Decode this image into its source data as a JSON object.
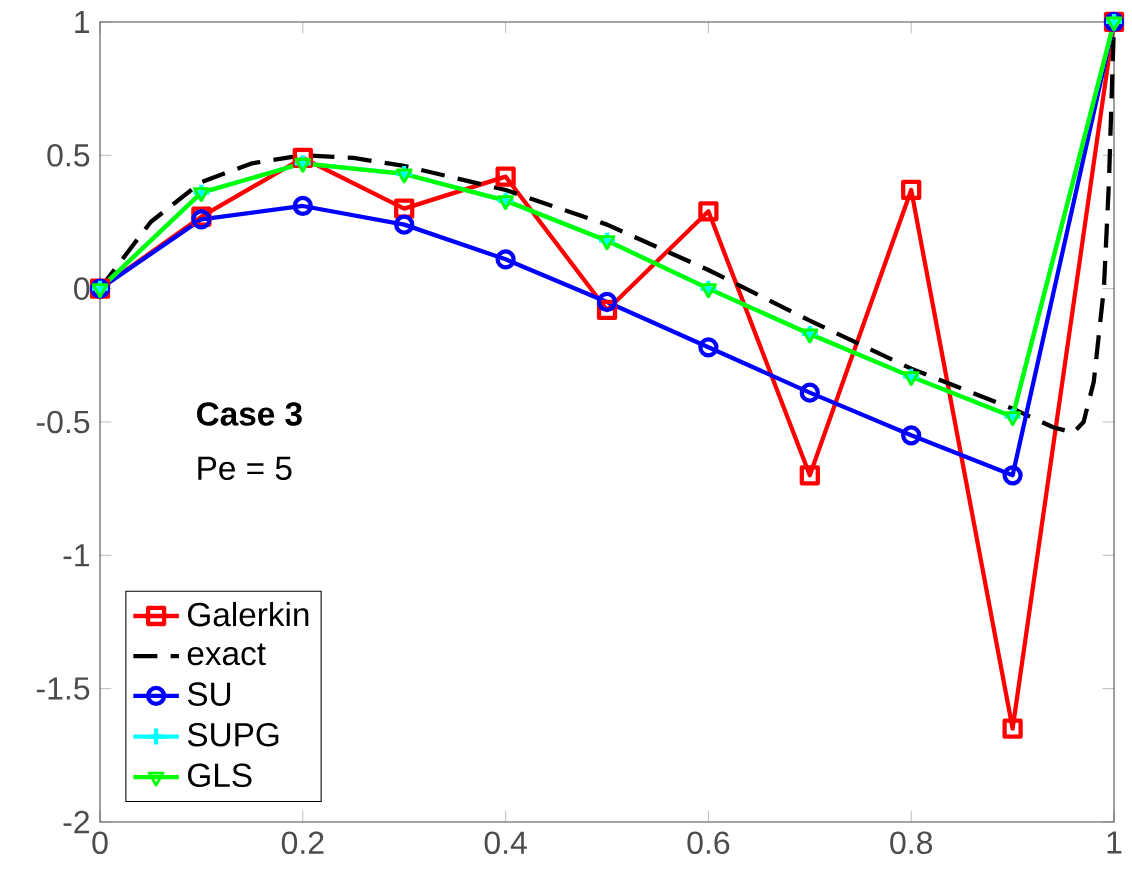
{
  "chart_data": {
    "type": "line",
    "x": [
      0,
      0.1,
      0.2,
      0.3,
      0.4,
      0.5,
      0.6,
      0.7,
      0.8,
      0.9,
      1
    ],
    "series": [
      {
        "name": "Galerkin",
        "color": "#ff0000",
        "marker": "square",
        "line_style": "solid",
        "values": [
          0,
          0.27,
          0.49,
          0.3,
          0.42,
          -0.08,
          0.29,
          -0.7,
          0.37,
          -1.65,
          1
        ]
      },
      {
        "name": "exact",
        "color": "#000000",
        "marker": "none",
        "line_style": "dashed",
        "x": [
          0,
          0.02,
          0.05,
          0.1,
          0.15,
          0.2,
          0.25,
          0.3,
          0.4,
          0.5,
          0.6,
          0.7,
          0.8,
          0.9,
          0.94,
          0.96,
          0.97,
          0.98,
          0.99,
          0.995,
          1
        ],
        "values": [
          0,
          0.1,
          0.25,
          0.4,
          0.47,
          0.5,
          0.49,
          0.46,
          0.37,
          0.24,
          0.07,
          -0.12,
          -0.3,
          -0.45,
          -0.52,
          -0.54,
          -0.5,
          -0.35,
          0.0,
          0.4,
          1
        ]
      },
      {
        "name": "SU",
        "color": "#0000ff",
        "marker": "circle",
        "line_style": "solid",
        "values": [
          0,
          0.26,
          0.31,
          0.24,
          0.11,
          -0.05,
          -0.22,
          -0.39,
          -0.55,
          -0.7,
          1
        ]
      },
      {
        "name": "SUPG",
        "color": "#00ffff",
        "marker": "cross",
        "line_style": "solid",
        "values": [
          0,
          0.36,
          0.47,
          0.43,
          0.33,
          0.18,
          0.0,
          -0.17,
          -0.33,
          -0.48,
          1
        ]
      },
      {
        "name": "GLS",
        "color": "#00ff00",
        "marker": "triangle",
        "line_style": "solid",
        "values": [
          0,
          0.36,
          0.47,
          0.43,
          0.33,
          0.18,
          0.0,
          -0.17,
          -0.33,
          -0.48,
          1
        ]
      }
    ],
    "xlim": [
      0,
      1
    ],
    "ylim": [
      -2,
      1
    ],
    "xticks": [
      0,
      0.2,
      0.4,
      0.6,
      0.8,
      1
    ],
    "yticks": [
      -2,
      -1.5,
      -1,
      -0.5,
      0,
      0.5,
      1
    ],
    "annotations": [
      "**Case 3**",
      "Pe = 5"
    ],
    "legend": "bottom left",
    "grid": false
  }
}
